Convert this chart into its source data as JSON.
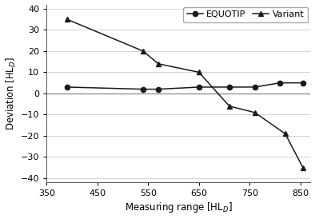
{
  "equotip_x": [
    390,
    540,
    570,
    650,
    710,
    760,
    810,
    855
  ],
  "equotip_y": [
    3,
    2,
    2,
    3,
    3,
    3,
    5,
    5
  ],
  "variant_x": [
    390,
    540,
    570,
    650,
    710,
    760,
    820,
    855
  ],
  "variant_y": [
    35,
    20,
    14,
    10,
    -6,
    -9,
    -19,
    -35
  ],
  "xlabel": "Measuring range [HL$_D$]",
  "ylabel": "Deviation [HL$_D$]",
  "xlim": [
    350,
    870
  ],
  "ylim": [
    -42,
    42
  ],
  "xticks": [
    350,
    450,
    550,
    650,
    750,
    850
  ],
  "yticks": [
    -40,
    -30,
    -20,
    -10,
    0,
    10,
    20,
    30,
    40
  ],
  "legend_labels": [
    "EQUOTIP",
    "Variant"
  ],
  "line_color": "#1a1a1a",
  "hline_color": "#888888",
  "background_color": "#ffffff",
  "grid_color": "#cccccc"
}
